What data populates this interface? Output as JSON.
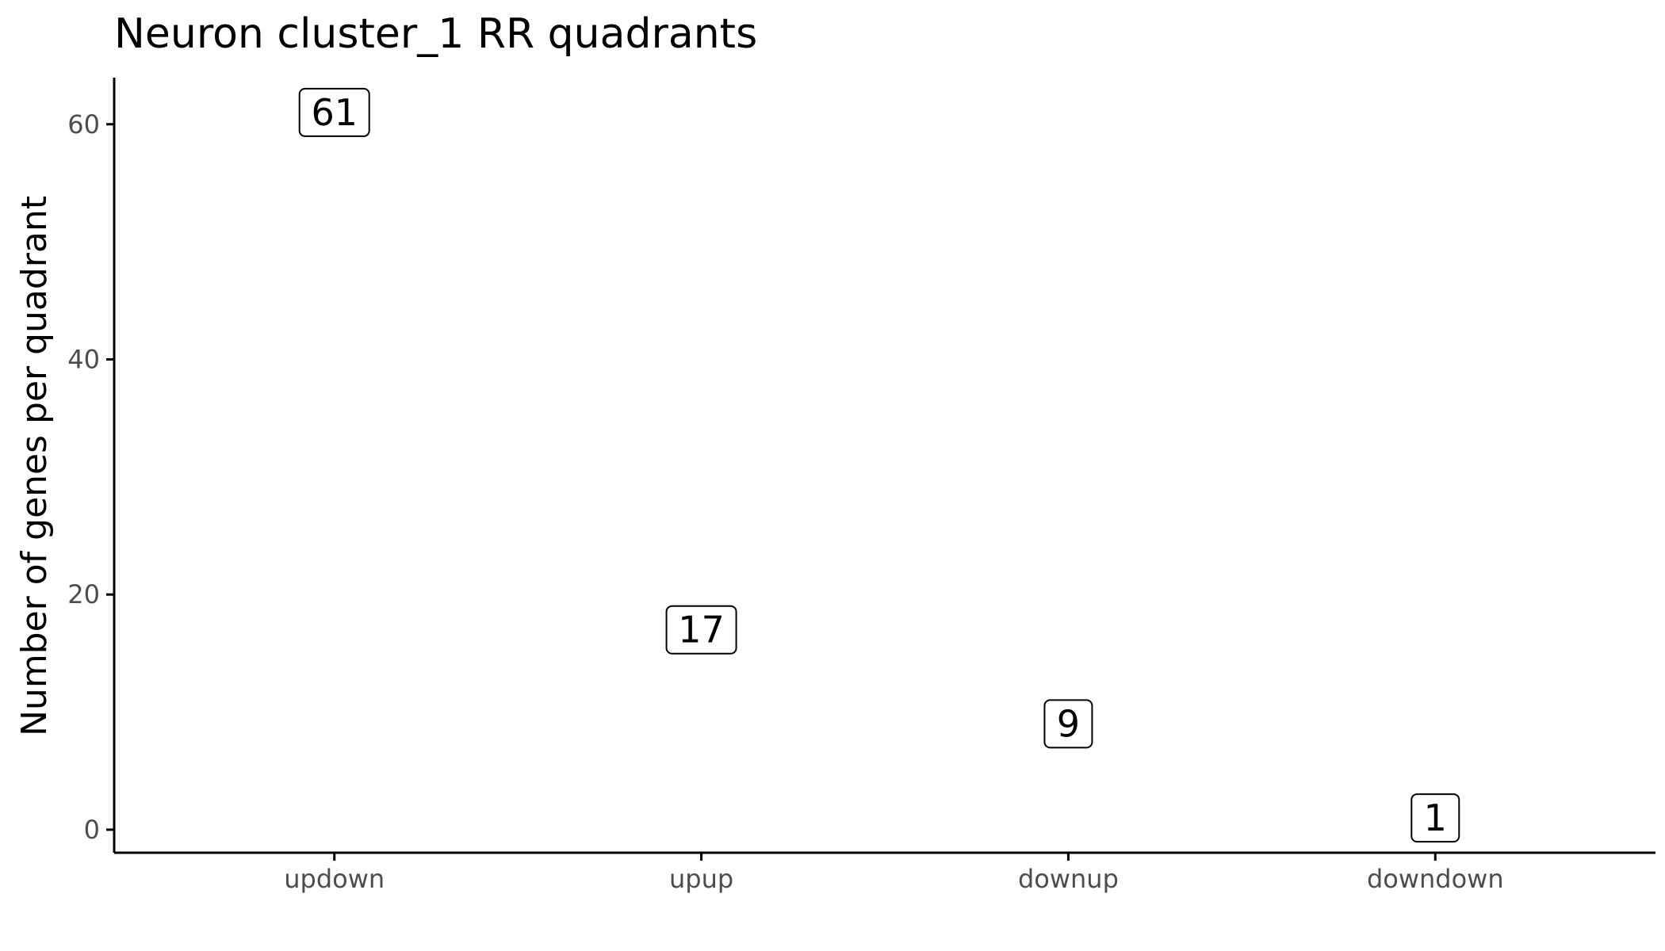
{
  "chart_data": {
    "type": "scatter",
    "title": "Neuron cluster_1 RR quadrants",
    "xlabel": "",
    "ylabel": "Number of genes per quadrant",
    "categories": [
      "updown",
      "upup",
      "downup",
      "downdown"
    ],
    "values": [
      61,
      17,
      9,
      1
    ],
    "data_labels": [
      "61",
      "17",
      "9",
      "1"
    ],
    "yticks": [
      0,
      20,
      40,
      60
    ],
    "ytick_labels": [
      "0",
      "20",
      "40",
      "60"
    ],
    "ylim": [
      -1.96,
      63.96
    ],
    "grid": false,
    "legend": "none"
  },
  "colors": {
    "axis": "#000000",
    "tick_text": "#4d4d4d",
    "label_box_fill": "#ffffff",
    "label_box_border": "#000000"
  }
}
